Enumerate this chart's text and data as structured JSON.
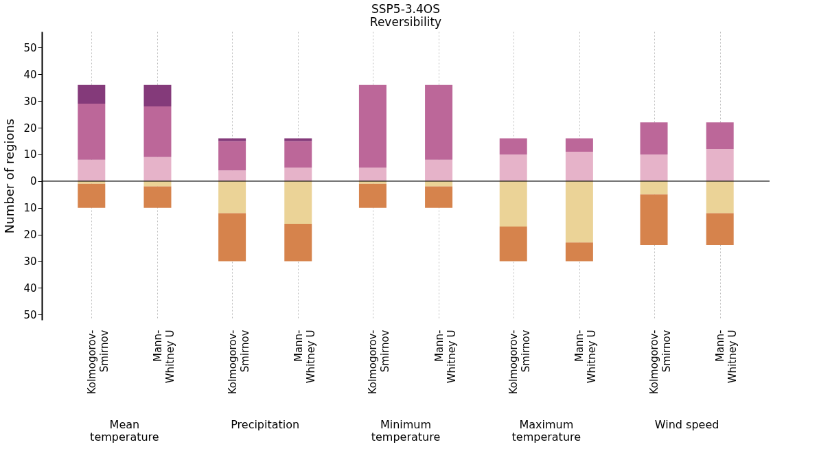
{
  "chart_data": {
    "type": "bar",
    "stacked": true,
    "title": "SSP5-3.4OS",
    "subtitle": "Reversibility",
    "ylabel": "Number of regions",
    "categories": [
      "Kolmogorov-\nSmirnov",
      "Mann-\nWhitney U",
      "Kolmogorov-\nSmirnov",
      "Mann-\nWhitney U",
      "Kolmogorov-\nSmirnov",
      "Mann-\nWhitney U",
      "Kolmogorov-\nSmirnov",
      "Mann-\nWhitney U",
      "Kolmogorov-\nSmirnov",
      "Mann-\nWhitney U"
    ],
    "series": [
      {
        "color": "#e6b3c9",
        "values": [
          8,
          9,
          4,
          5,
          5,
          8,
          10,
          11,
          10,
          12
        ]
      },
      {
        "color": "#bc6799",
        "values": [
          21,
          19,
          11,
          10,
          31,
          28,
          6,
          5,
          12,
          10
        ]
      },
      {
        "color": "#843a7a",
        "values": [
          7,
          8,
          1,
          1,
          0,
          0,
          0,
          0,
          0,
          0
        ]
      },
      {
        "color": "#ebd397",
        "values": [
          -1,
          -2,
          -12,
          -16,
          -1,
          -2,
          -17,
          -23,
          -5,
          -12
        ]
      },
      {
        "color": "#d6834c",
        "values": [
          -9,
          -8,
          -18,
          -14,
          -9,
          -8,
          -13,
          -7,
          -19,
          -12
        ]
      }
    ],
    "ylim": [
      -52,
      56
    ],
    "yticks": [
      {
        "value": -50,
        "label": "50"
      },
      {
        "value": -40,
        "label": "40"
      },
      {
        "value": -30,
        "label": "30"
      },
      {
        "value": -20,
        "label": "20"
      },
      {
        "value": -10,
        "label": "10"
      },
      0,
      10,
      20,
      30,
      40,
      50
    ],
    "ref_lines": [
      {
        "axis": "y",
        "value": 0,
        "color": "#000000"
      }
    ],
    "grid": "x",
    "legend": false,
    "annotations": [
      "Mean\ntemperature",
      "Precipitation",
      "Minimum\ntemperature",
      "Maximum\ntemperature",
      "Wind speed"
    ]
  }
}
